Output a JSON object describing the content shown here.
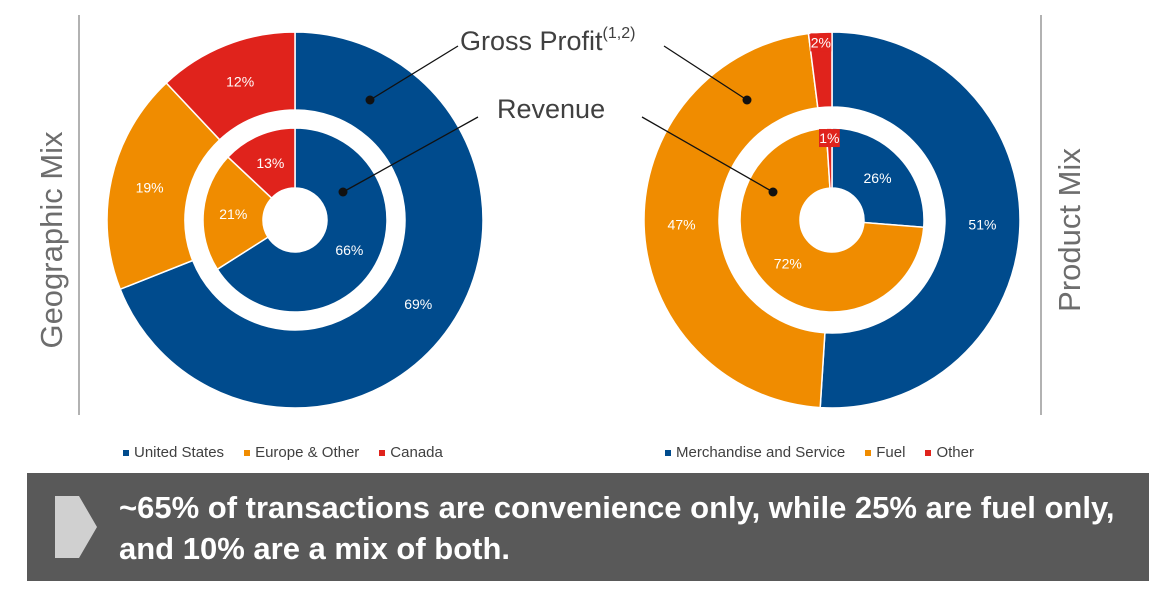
{
  "colors": {
    "blue": "#004b8d",
    "orange": "#f08c00",
    "red": "#e0231c",
    "line": "#111111",
    "divider": "#7f7f7f"
  },
  "chart_data": [
    {
      "type": "donut",
      "title": "Geographic Mix",
      "rings": [
        {
          "name": "Gross Profit",
          "categories": [
            "United States",
            "Europe & Other",
            "Canada"
          ],
          "values": [
            69,
            19,
            12
          ]
        },
        {
          "name": "Revenue",
          "categories": [
            "United States",
            "Europe & Other",
            "Canada"
          ],
          "values": [
            66,
            21,
            13
          ]
        }
      ],
      "legend": [
        "United States",
        "Europe & Other",
        "Canada"
      ]
    },
    {
      "type": "donut",
      "title": "Product Mix",
      "rings": [
        {
          "name": "Gross Profit",
          "categories": [
            "Merchandise and Service",
            "Fuel",
            "Other"
          ],
          "values": [
            51,
            47,
            2
          ]
        },
        {
          "name": "Revenue",
          "categories": [
            "Merchandise and Service",
            "Fuel",
            "Other"
          ],
          "values": [
            26,
            72,
            1
          ]
        }
      ],
      "legend": [
        "Merchandise and Service",
        "Fuel",
        "Other"
      ]
    }
  ],
  "callouts": {
    "gross_profit": "Gross Profit",
    "gross_profit_note": "(1,2)",
    "revenue": "Revenue"
  },
  "banner": {
    "text": "~65% of transactions are convenience only, while 25% are fuel only, and 10% are a mix of both."
  }
}
